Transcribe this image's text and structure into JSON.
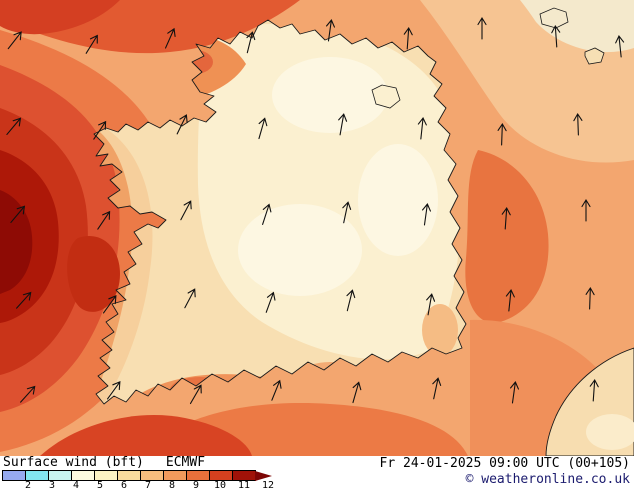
{
  "footer": {
    "product": "Surface wind (bft)",
    "model": "ECMWF",
    "datetime": "Fr 24-01-2025 09:00 UTC (00+105)",
    "copyright": "© weatheronline.co.uk"
  },
  "legend": {
    "unit": "bft",
    "ticks": [
      "2",
      "3",
      "4",
      "5",
      "6",
      "7",
      "8",
      "9",
      "10",
      "11",
      "12"
    ],
    "cell_colors": [
      "#96aaf0",
      "#82e6f0",
      "#c8f5f0",
      "#fdfbe0",
      "#fcf3c4",
      "#f9dc9e",
      "#f7bd7e",
      "#f29a5c",
      "#e9703b",
      "#d4401f",
      "#a01208"
    ],
    "arrow_color": "#7d0605"
  },
  "map": {
    "region": "Ireland",
    "sea_base_color": "#f3a66f",
    "land_base_color": "#f8dfb2",
    "coastline_color": "#1a1a1a",
    "max_wind_color": "#8e0b05",
    "min_wind_color": "#fdf7e2"
  }
}
